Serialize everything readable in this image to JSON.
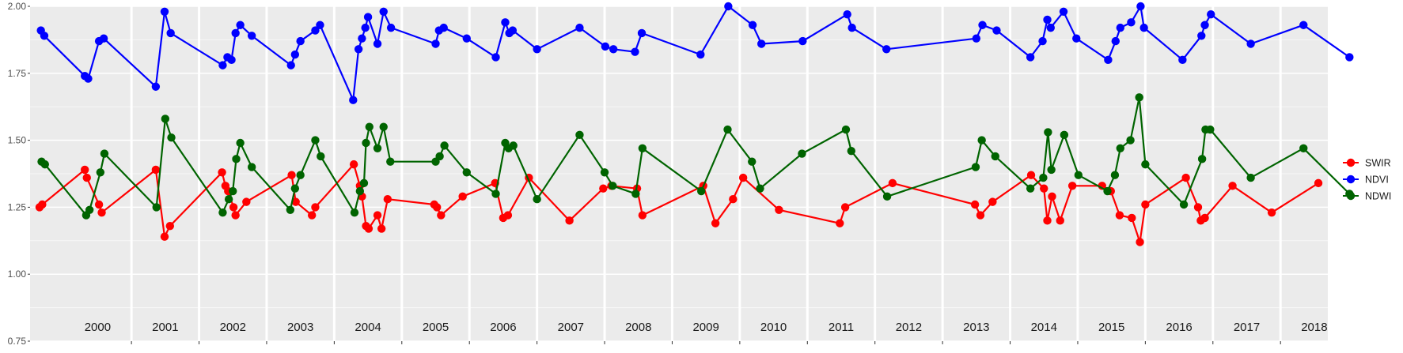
{
  "chart_data": {
    "type": "line",
    "title": "",
    "xlabel": "",
    "ylabel": "",
    "ylim": [
      0.75,
      2.0
    ],
    "xlim": [
      1999.5,
      2018.7
    ],
    "y_ticks": [
      "0.75",
      "1.00",
      "1.25",
      "1.50",
      "1.75",
      "2.00"
    ],
    "year_labels": [
      "2000",
      "2001",
      "2002",
      "2003",
      "2004",
      "2005",
      "2006",
      "2007",
      "2008",
      "2009",
      "2010",
      "2011",
      "2012",
      "2013",
      "2014",
      "2015",
      "2016",
      "2017",
      "2018"
    ],
    "year_boundaries": [
      2001,
      2002,
      2003,
      2004,
      2005,
      2006,
      2007,
      2008,
      2009,
      2010,
      2011,
      2012,
      2013,
      2014,
      2015,
      2016,
      2017,
      2018
    ],
    "grid": true,
    "legend_position": "right",
    "colors": {
      "panel": "#ebebeb",
      "grid": "#ffffff",
      "SWIR": "#ff0000",
      "NDVI": "#0000ff",
      "NDWI": "#006400"
    },
    "series": [
      {
        "name": "SWIR",
        "color": "#ff0000",
        "points": [
          [
            1999.64,
            1.25
          ],
          [
            1999.68,
            1.26
          ],
          [
            2000.31,
            1.39
          ],
          [
            2000.34,
            1.36
          ],
          [
            2000.52,
            1.26
          ],
          [
            2000.56,
            1.23
          ],
          [
            2001.36,
            1.39
          ],
          [
            2001.49,
            1.14
          ],
          [
            2001.57,
            1.18
          ],
          [
            2002.34,
            1.38
          ],
          [
            2002.39,
            1.33
          ],
          [
            2002.43,
            1.31
          ],
          [
            2002.51,
            1.25
          ],
          [
            2002.54,
            1.22
          ],
          [
            2002.7,
            1.27
          ],
          [
            2003.37,
            1.37
          ],
          [
            2003.43,
            1.27
          ],
          [
            2003.67,
            1.22
          ],
          [
            2003.72,
            1.25
          ],
          [
            2004.29,
            1.41
          ],
          [
            2004.38,
            1.33
          ],
          [
            2004.41,
            1.29
          ],
          [
            2004.47,
            1.18
          ],
          [
            2004.51,
            1.17
          ],
          [
            2004.64,
            1.22
          ],
          [
            2004.7,
            1.17
          ],
          [
            2004.79,
            1.28
          ],
          [
            2005.48,
            1.26
          ],
          [
            2005.52,
            1.25
          ],
          [
            2005.58,
            1.22
          ],
          [
            2005.9,
            1.29
          ],
          [
            2006.38,
            1.34
          ],
          [
            2006.5,
            1.21
          ],
          [
            2006.57,
            1.22
          ],
          [
            2006.88,
            1.36
          ],
          [
            2007.48,
            1.2
          ],
          [
            2007.98,
            1.32
          ],
          [
            2008.1,
            1.33
          ],
          [
            2008.48,
            1.32
          ],
          [
            2008.56,
            1.22
          ],
          [
            2009.46,
            1.33
          ],
          [
            2009.64,
            1.19
          ],
          [
            2009.9,
            1.28
          ],
          [
            2010.05,
            1.36
          ],
          [
            2010.58,
            1.24
          ],
          [
            2011.48,
            1.19
          ],
          [
            2011.56,
            1.25
          ],
          [
            2012.26,
            1.34
          ],
          [
            2013.48,
            1.26
          ],
          [
            2013.56,
            1.22
          ],
          [
            2013.74,
            1.27
          ],
          [
            2014.31,
            1.37
          ],
          [
            2014.5,
            1.32
          ],
          [
            2014.55,
            1.2
          ],
          [
            2014.62,
            1.29
          ],
          [
            2014.74,
            1.2
          ],
          [
            2014.92,
            1.33
          ],
          [
            2015.36,
            1.33
          ],
          [
            2015.49,
            1.31
          ],
          [
            2015.62,
            1.22
          ],
          [
            2015.8,
            1.21
          ],
          [
            2015.92,
            1.12
          ],
          [
            2016.0,
            1.26
          ],
          [
            2016.6,
            1.36
          ],
          [
            2016.78,
            1.25
          ],
          [
            2016.82,
            1.2
          ],
          [
            2016.88,
            1.21
          ],
          [
            2017.29,
            1.33
          ],
          [
            2017.87,
            1.23
          ],
          [
            2018.56,
            1.34
          ]
        ]
      },
      {
        "name": "NDVI",
        "color": "#0000ff",
        "points": [
          [
            1999.66,
            1.91
          ],
          [
            1999.71,
            1.89
          ],
          [
            2000.31,
            1.74
          ],
          [
            2000.36,
            1.73
          ],
          [
            2000.52,
            1.87
          ],
          [
            2000.59,
            1.88
          ],
          [
            2001.36,
            1.7
          ],
          [
            2001.49,
            1.98
          ],
          [
            2001.58,
            1.9
          ],
          [
            2002.35,
            1.78
          ],
          [
            2002.42,
            1.81
          ],
          [
            2002.48,
            1.8
          ],
          [
            2002.54,
            1.9
          ],
          [
            2002.61,
            1.93
          ],
          [
            2002.78,
            1.89
          ],
          [
            2003.36,
            1.78
          ],
          [
            2003.42,
            1.82
          ],
          [
            2003.5,
            1.87
          ],
          [
            2003.72,
            1.91
          ],
          [
            2003.79,
            1.93
          ],
          [
            2004.28,
            1.65
          ],
          [
            2004.36,
            1.84
          ],
          [
            2004.41,
            1.88
          ],
          [
            2004.46,
            1.92
          ],
          [
            2004.5,
            1.96
          ],
          [
            2004.64,
            1.86
          ],
          [
            2004.73,
            1.98
          ],
          [
            2004.84,
            1.92
          ],
          [
            2005.5,
            1.86
          ],
          [
            2005.55,
            1.91
          ],
          [
            2005.62,
            1.92
          ],
          [
            2005.96,
            1.88
          ],
          [
            2006.39,
            1.81
          ],
          [
            2006.53,
            1.94
          ],
          [
            2006.59,
            1.9
          ],
          [
            2006.64,
            1.91
          ],
          [
            2007.0,
            1.84
          ],
          [
            2007.63,
            1.92
          ],
          [
            2008.01,
            1.85
          ],
          [
            2008.13,
            1.84
          ],
          [
            2008.45,
            1.83
          ],
          [
            2008.55,
            1.9
          ],
          [
            2009.42,
            1.82
          ],
          [
            2009.83,
            2.0
          ],
          [
            2010.19,
            1.93
          ],
          [
            2010.32,
            1.86
          ],
          [
            2010.93,
            1.87
          ],
          [
            2011.59,
            1.97
          ],
          [
            2011.66,
            1.92
          ],
          [
            2012.17,
            1.84
          ],
          [
            2013.5,
            1.88
          ],
          [
            2013.59,
            1.93
          ],
          [
            2013.8,
            1.91
          ],
          [
            2014.3,
            1.81
          ],
          [
            2014.48,
            1.87
          ],
          [
            2014.55,
            1.95
          ],
          [
            2014.6,
            1.92
          ],
          [
            2014.79,
            1.98
          ],
          [
            2014.98,
            1.88
          ],
          [
            2015.45,
            1.8
          ],
          [
            2015.56,
            1.87
          ],
          [
            2015.63,
            1.92
          ],
          [
            2015.79,
            1.94
          ],
          [
            2015.93,
            2.0
          ],
          [
            2015.98,
            1.92
          ],
          [
            2016.55,
            1.8
          ],
          [
            2016.83,
            1.89
          ],
          [
            2016.88,
            1.93
          ],
          [
            2016.97,
            1.97
          ],
          [
            2017.56,
            1.86
          ],
          [
            2018.34,
            1.93
          ],
          [
            2019.02,
            1.81
          ]
        ]
      },
      {
        "name": "NDWI",
        "color": "#006400",
        "points": [
          [
            1999.67,
            1.42
          ],
          [
            1999.72,
            1.41
          ],
          [
            2000.33,
            1.22
          ],
          [
            2000.38,
            1.24
          ],
          [
            2000.54,
            1.38
          ],
          [
            2000.6,
            1.45
          ],
          [
            2001.37,
            1.25
          ],
          [
            2001.5,
            1.58
          ],
          [
            2001.59,
            1.51
          ],
          [
            2002.35,
            1.23
          ],
          [
            2002.44,
            1.28
          ],
          [
            2002.5,
            1.31
          ],
          [
            2002.55,
            1.43
          ],
          [
            2002.61,
            1.49
          ],
          [
            2002.78,
            1.4
          ],
          [
            2003.35,
            1.24
          ],
          [
            2003.42,
            1.32
          ],
          [
            2003.5,
            1.37
          ],
          [
            2003.72,
            1.5
          ],
          [
            2003.8,
            1.44
          ],
          [
            2004.3,
            1.23
          ],
          [
            2004.38,
            1.31
          ],
          [
            2004.44,
            1.34
          ],
          [
            2004.47,
            1.49
          ],
          [
            2004.52,
            1.55
          ],
          [
            2004.64,
            1.47
          ],
          [
            2004.73,
            1.55
          ],
          [
            2004.83,
            1.42
          ],
          [
            2005.5,
            1.42
          ],
          [
            2005.56,
            1.44
          ],
          [
            2005.63,
            1.48
          ],
          [
            2005.96,
            1.38
          ],
          [
            2006.39,
            1.3
          ],
          [
            2006.53,
            1.49
          ],
          [
            2006.58,
            1.47
          ],
          [
            2006.65,
            1.48
          ],
          [
            2007.0,
            1.28
          ],
          [
            2007.63,
            1.52
          ],
          [
            2008.0,
            1.38
          ],
          [
            2008.12,
            1.33
          ],
          [
            2008.46,
            1.3
          ],
          [
            2008.56,
            1.47
          ],
          [
            2009.43,
            1.31
          ],
          [
            2009.82,
            1.54
          ],
          [
            2010.18,
            1.42
          ],
          [
            2010.3,
            1.32
          ],
          [
            2010.92,
            1.45
          ],
          [
            2011.57,
            1.54
          ],
          [
            2011.65,
            1.46
          ],
          [
            2012.18,
            1.29
          ],
          [
            2013.49,
            1.4
          ],
          [
            2013.58,
            1.5
          ],
          [
            2013.78,
            1.44
          ],
          [
            2014.3,
            1.32
          ],
          [
            2014.49,
            1.36
          ],
          [
            2014.56,
            1.53
          ],
          [
            2014.61,
            1.39
          ],
          [
            2014.8,
            1.52
          ],
          [
            2015.01,
            1.37
          ],
          [
            2015.44,
            1.31
          ],
          [
            2015.55,
            1.37
          ],
          [
            2015.63,
            1.47
          ],
          [
            2015.78,
            1.5
          ],
          [
            2015.91,
            1.66
          ],
          [
            2016.0,
            1.41
          ],
          [
            2016.57,
            1.26
          ],
          [
            2016.84,
            1.43
          ],
          [
            2016.89,
            1.54
          ],
          [
            2016.96,
            1.54
          ],
          [
            2017.56,
            1.36
          ],
          [
            2018.34,
            1.47
          ],
          [
            2019.02,
            1.3
          ]
        ]
      }
    ]
  }
}
